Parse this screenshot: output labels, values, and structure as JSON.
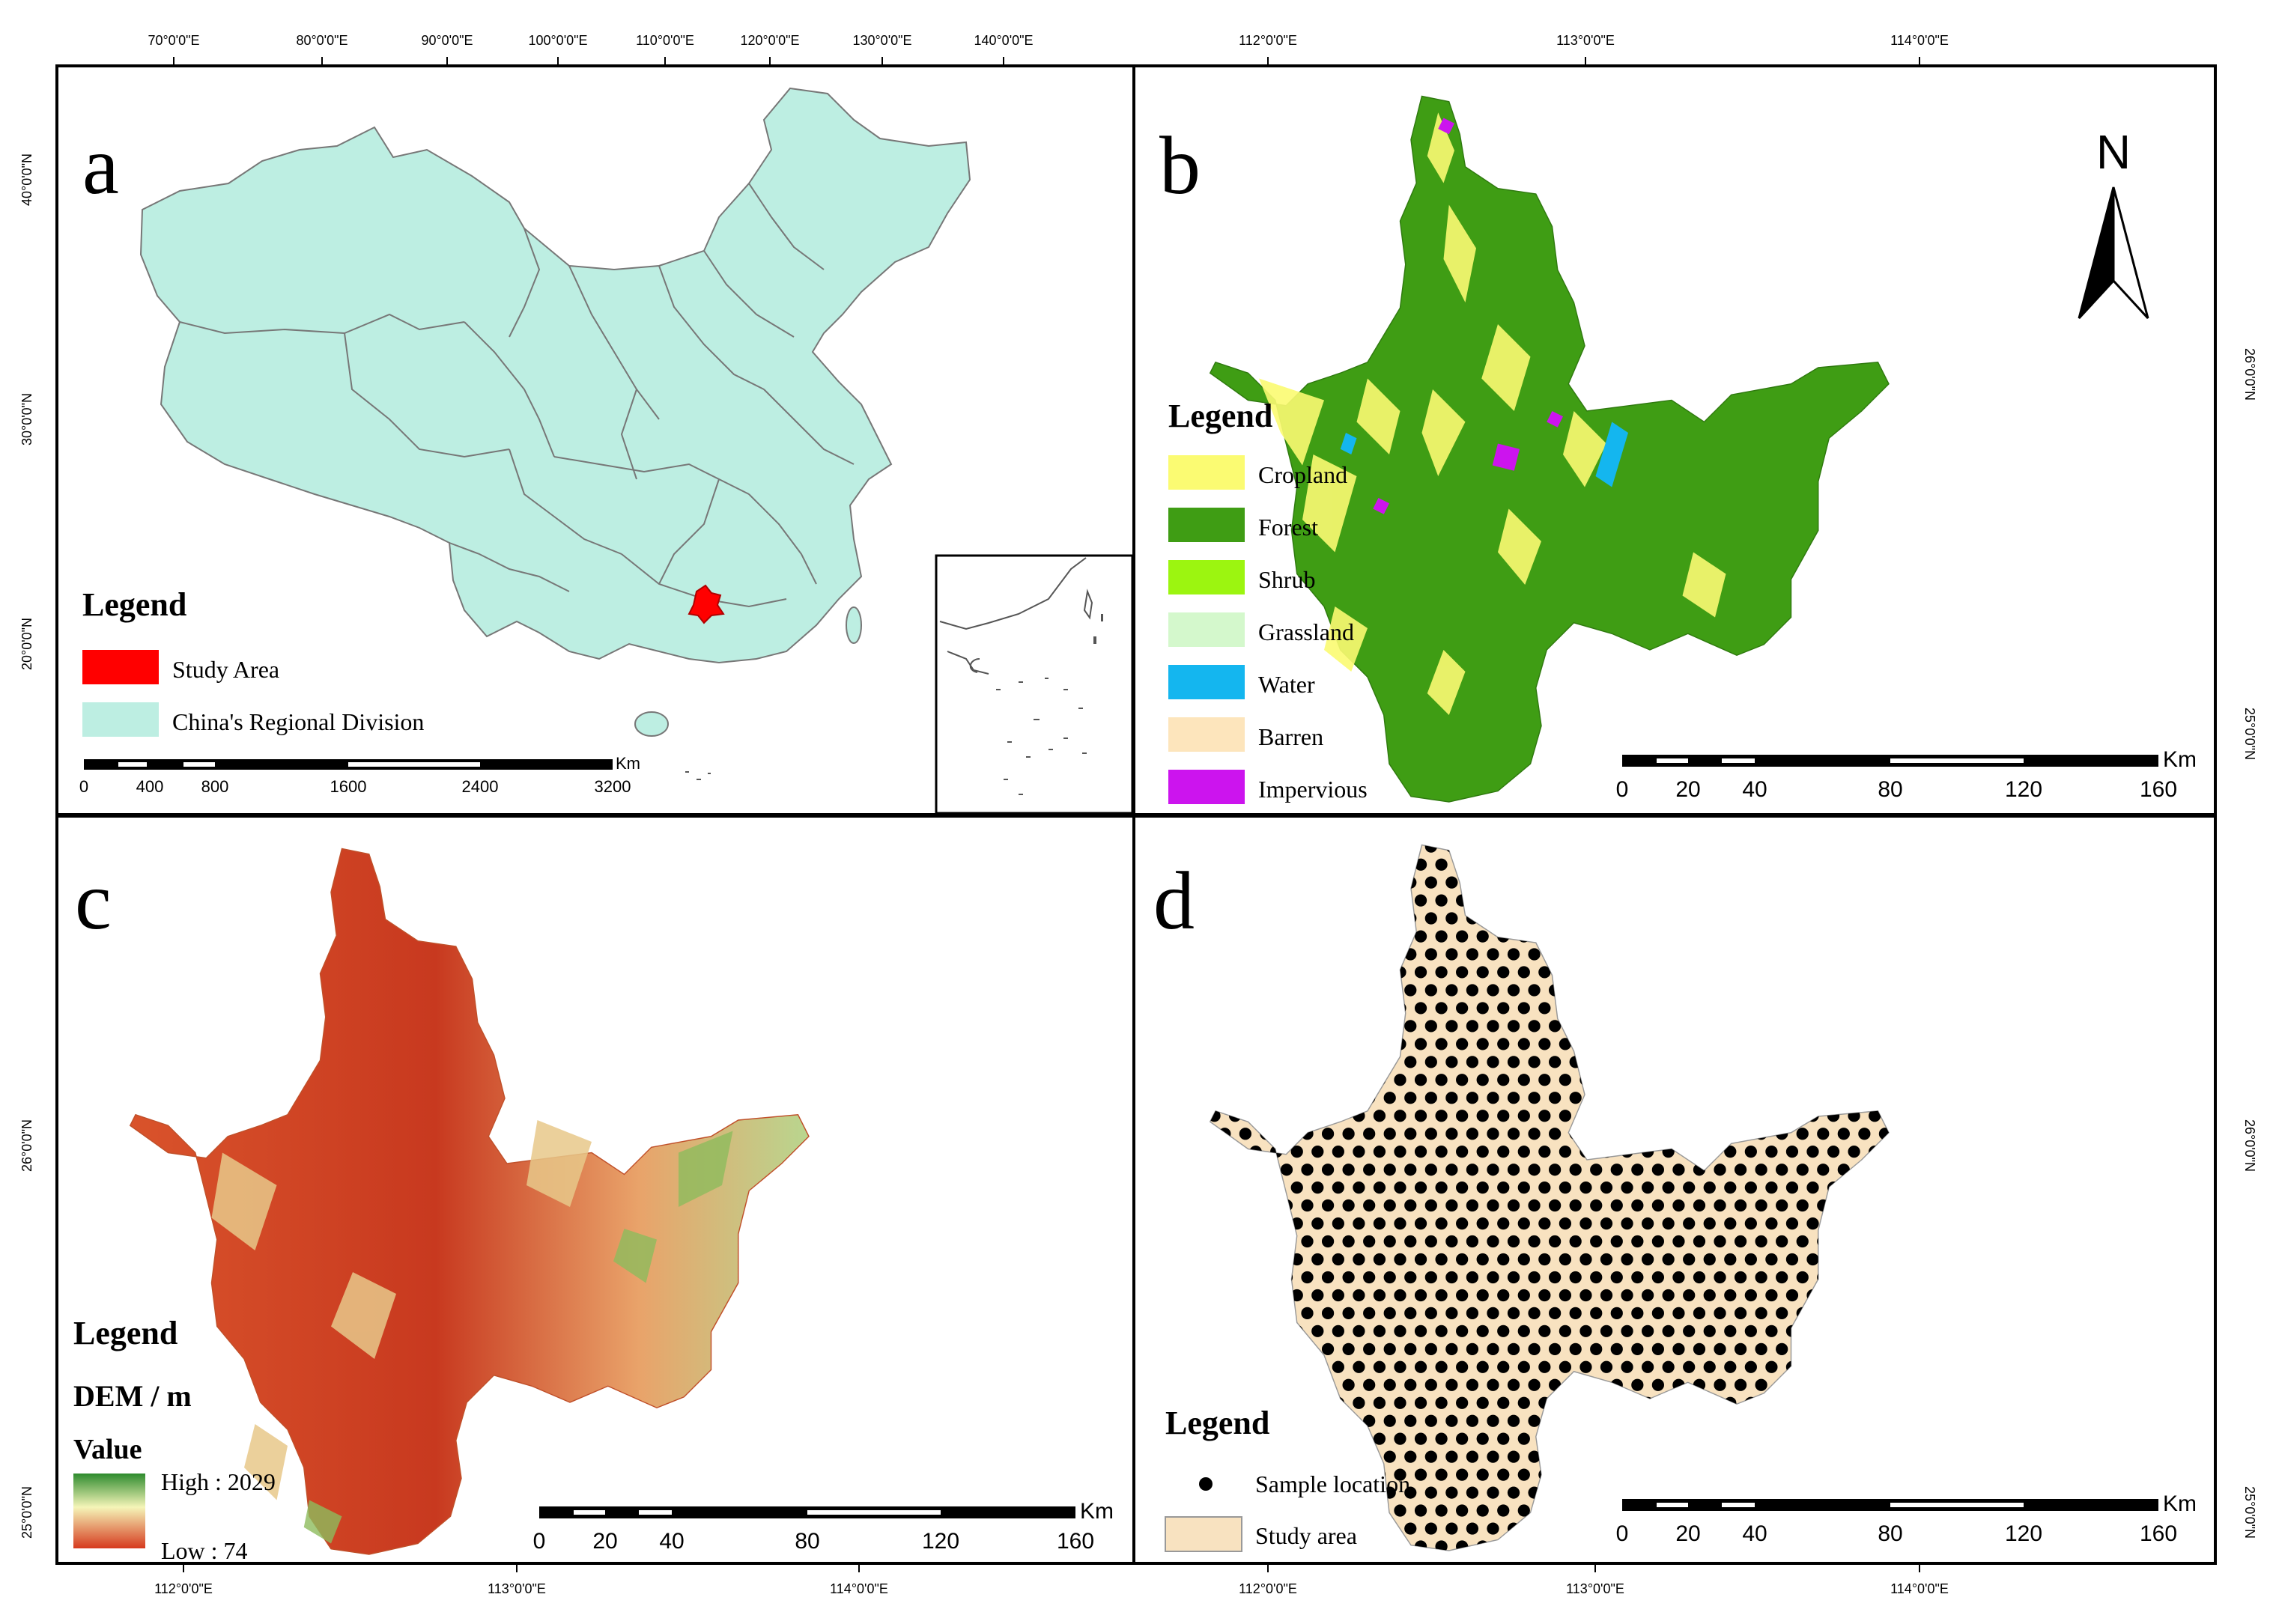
{
  "graticule": {
    "top_lon": [
      "70°0'0\"E",
      "80°0'0\"E",
      "90°0'0\"E",
      "100°0'0\"E",
      "110°0'0\"E",
      "120°0'0\"E",
      "130°0'0\"E",
      "140°0'0\"E"
    ],
    "left_lat_a": [
      "40°0'0\"N",
      "30°0'0\"N",
      "20°0'0\"N"
    ],
    "top_lon_b": [
      "112°0'0\"E",
      "113°0'0\"E",
      "114°0'0\"E"
    ],
    "right_lat_b": [
      "26°0'0\"N",
      "25°0'0\"N"
    ],
    "left_lat_c": [
      "26°0'0\"N",
      "25°0'0\"N"
    ],
    "bottom_lon": [
      "112°0'0\"E",
      "113°0'0\"E",
      "114°0'0\"E",
      "112°0'0\"E",
      "113°0'0\"E",
      "114°0'0\"E"
    ],
    "right_lat_d": [
      "26°0'0\"N",
      "25°0'0\"N"
    ]
  },
  "panel_a": {
    "letter": "a",
    "legend_title": "Legend",
    "legend_items": [
      {
        "label": "Study Area",
        "color": "#ff0000"
      },
      {
        "label": "China's Regional Division",
        "color": "#bdeee2"
      }
    ],
    "scale_unit": "Km",
    "scale_labels": [
      "0",
      "400",
      "800",
      "1600",
      "2400",
      "3200"
    ]
  },
  "panel_b": {
    "letter": "b",
    "north": "N",
    "legend_title": "Legend",
    "legend_items": [
      {
        "label": "Cropland",
        "color": "#fbfb72"
      },
      {
        "label": "Forest",
        "color": "#3f9d14"
      },
      {
        "label": "Shrub",
        "color": "#9cf510"
      },
      {
        "label": "Grassland",
        "color": "#d4f8cc"
      },
      {
        "label": "Water",
        "color": "#14b6ef"
      },
      {
        "label": "Barren",
        "color": "#fde5bc"
      },
      {
        "label": "Impervious",
        "color": "#cc14ee"
      }
    ],
    "scale_unit": "Km",
    "scale_labels": [
      "0",
      "20",
      "40",
      "80",
      "120",
      "160"
    ]
  },
  "panel_c": {
    "letter": "c",
    "legend_title": "Legend",
    "legend_sub": "DEM / m",
    "legend_value": "Value",
    "high_label": "High : 2029",
    "low_label": "Low : 74",
    "ramp": [
      "#2e8b2e",
      "#f5f5b8",
      "#d63a1e"
    ],
    "scale_unit": "Km",
    "scale_labels": [
      "0",
      "20",
      "40",
      "80",
      "120",
      "160"
    ]
  },
  "panel_d": {
    "letter": "d",
    "legend_title": "Legend",
    "legend_items": [
      {
        "label": "Sample location",
        "color": "#000000"
      },
      {
        "label": "Study area",
        "color": "#f8e2c0"
      }
    ],
    "scale_unit": "Km",
    "scale_labels": [
      "0",
      "20",
      "40",
      "80",
      "120",
      "160"
    ]
  }
}
